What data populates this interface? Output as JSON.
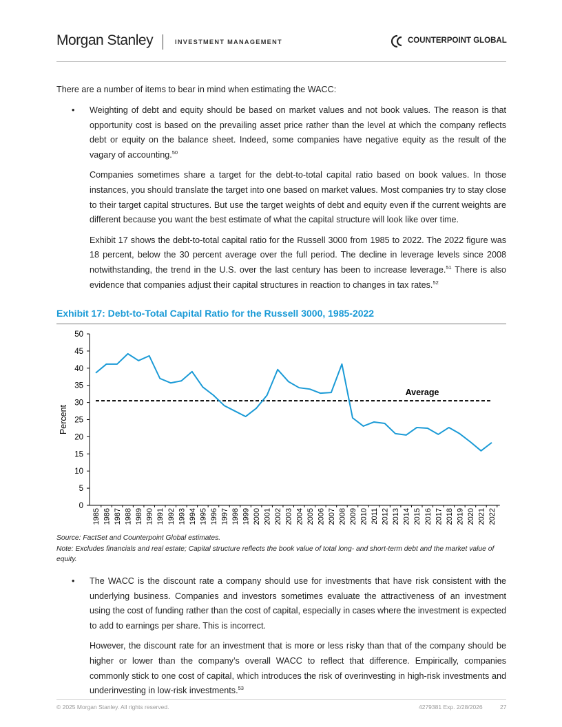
{
  "header": {
    "brand": "Morgan Stanley",
    "division": "INVESTMENT MANAGEMENT",
    "partner": "COUNTERPOINT GLOBAL"
  },
  "intro": "There are a number of items to bear in mind when estimating the WACC:",
  "bullets": [
    {
      "paragraphs": [
        [
          {
            "t": "Weighting of debt and equity should be based on market values and not book values. The reason is that opportunity cost is based on the prevailing asset price rather than the level at which the company reflects debt or equity on the balance sheet. Indeed, some companies have negative equity as the result of the vagary of accounting."
          },
          {
            "sup": "50"
          }
        ],
        [
          {
            "t": "Companies sometimes share a target for the debt-to-total capital ratio based on book values. In those instances, you should translate the target into one based on market values. Most companies try to stay close to their target capital structures. But use the target weights of debt and equity even if the current weights are different because you want the best estimate of what the capital structure will look like over time."
          }
        ],
        [
          {
            "t": "Exhibit 17 shows the debt-to-total capital ratio for the Russell 3000 from 1985 to 2022. The 2022 figure was 18 percent, below the 30 percent average over the full period. The decline in leverage levels since 2008 notwithstanding, the trend in the U.S. over the last century has been to increase leverage."
          },
          {
            "sup": "51"
          },
          {
            "t": " There is also evidence that companies adjust their capital structures in reaction to changes in tax rates."
          },
          {
            "sup": "52"
          }
        ]
      ]
    },
    {
      "paragraphs": [
        [
          {
            "t": "The WACC is the discount rate a company should use for investments that have risk consistent with the underlying business. Companies and investors sometimes evaluate the attractiveness of an investment using the cost of funding rather than the cost of capital, especially in cases where the investment is expected to add to earnings per share. This is incorrect."
          }
        ],
        [
          {
            "t": "However, the discount rate for an investment that is more or less risky than that of the company should be higher or lower than the company’s overall WACC to reflect that difference. Empirically, companies commonly stick to one cost of capital, which introduces the risk of overinvesting in high-risk investments and underinvesting in low-risk investments."
          },
          {
            "sup": "53"
          }
        ]
      ]
    }
  ],
  "chart_data": {
    "type": "line",
    "title": "Exhibit 17: Debt-to-Total Capital Ratio for the Russell 3000, 1985-2022",
    "y_label": "Percent",
    "categories": [
      "1985",
      "1986",
      "1987",
      "1988",
      "1989",
      "1990",
      "1991",
      "1992",
      "1993",
      "1994",
      "1995",
      "1996",
      "1997",
      "1998",
      "1999",
      "2000",
      "2001",
      "2002",
      "2003",
      "2004",
      "2005",
      "2006",
      "2007",
      "2008",
      "2009",
      "2010",
      "2011",
      "2012",
      "2013",
      "2014",
      "2015",
      "2016",
      "2017",
      "2018",
      "2019",
      "2020",
      "2021",
      "2022"
    ],
    "series": [
      {
        "name": "Debt-to-Total Capital Ratio",
        "color": "#1a9ad6",
        "values": [
          38.6,
          41.2,
          41.2,
          44.2,
          42.2,
          43.6,
          37.0,
          35.7,
          36.3,
          39.0,
          34.5,
          32.1,
          29.1,
          27.5,
          25.9,
          28.3,
          32.1,
          39.6,
          36.1,
          34.3,
          33.9,
          32.7,
          32.9,
          41.2,
          25.5,
          23.1,
          24.3,
          23.9,
          20.9,
          20.5,
          22.7,
          22.5,
          20.7,
          22.7,
          20.9,
          18.5,
          15.9,
          18.3
        ]
      }
    ],
    "average": {
      "label": "Average",
      "value": 30.5
    },
    "ylim": [
      0,
      50
    ],
    "yticks": [
      0,
      5,
      10,
      15,
      20,
      25,
      30,
      35,
      40,
      45,
      50
    ]
  },
  "source": "Source: FactSet and Counterpoint Global estimates.",
  "note": "Note: Excludes financials and real estate; Capital structure reflects the book value of total long- and short-term debt and the market value of equity.",
  "footer": {
    "copyright": "© 2025 Morgan Stanley. All rights reserved.",
    "code": "4279381 Exp. 2/28/2026",
    "page": "27"
  }
}
